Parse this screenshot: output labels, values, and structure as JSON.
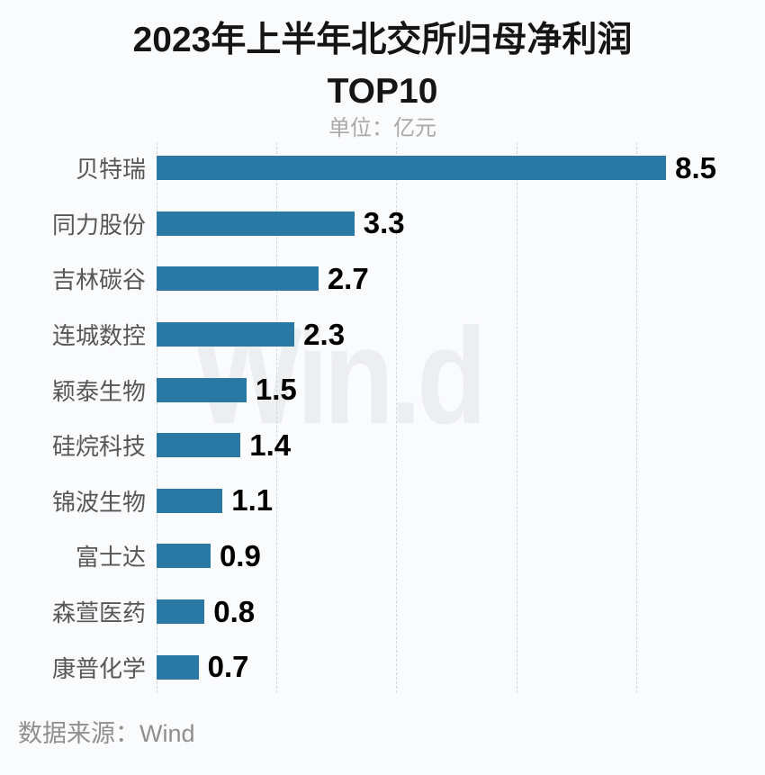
{
  "title": {
    "line1": "2023年上半年北交所归母净利润",
    "line2": "TOP10"
  },
  "subtitle": "单位：亿元",
  "watermark": "Win.d",
  "footer": {
    "source_label": "数据来源：Wind"
  },
  "chart_data": {
    "type": "bar",
    "orientation": "horizontal",
    "title": "2023年上半年北交所归母净利润TOP10",
    "unit_label": "单位：亿元",
    "source": "数据来源：Wind",
    "categories": [
      "贝特瑞",
      "同力股份",
      "吉林碳谷",
      "连城数控",
      "颖泰生物",
      "硅烷科技",
      "锦波生物",
      "富士达",
      "森萱医药",
      "康普化学"
    ],
    "values": [
      8.5,
      3.3,
      2.7,
      2.3,
      1.5,
      1.4,
      1.1,
      0.9,
      0.8,
      0.7
    ],
    "value_labels": [
      "8.5",
      "3.3",
      "2.7",
      "2.3",
      "1.5",
      "1.4",
      "1.1",
      "0.9",
      "0.8",
      "0.7"
    ],
    "xlim": [
      0,
      10
    ],
    "gridline_step": 2,
    "grid_style": "dashed-vertical",
    "legend": "none",
    "bar_color": "#2a79a5",
    "category_label_color": "#575757",
    "value_label_color": "#000000",
    "gridline_color": "#d5d8db",
    "watermark_color": "#eceef0",
    "background_color": "#fafbfd"
  }
}
